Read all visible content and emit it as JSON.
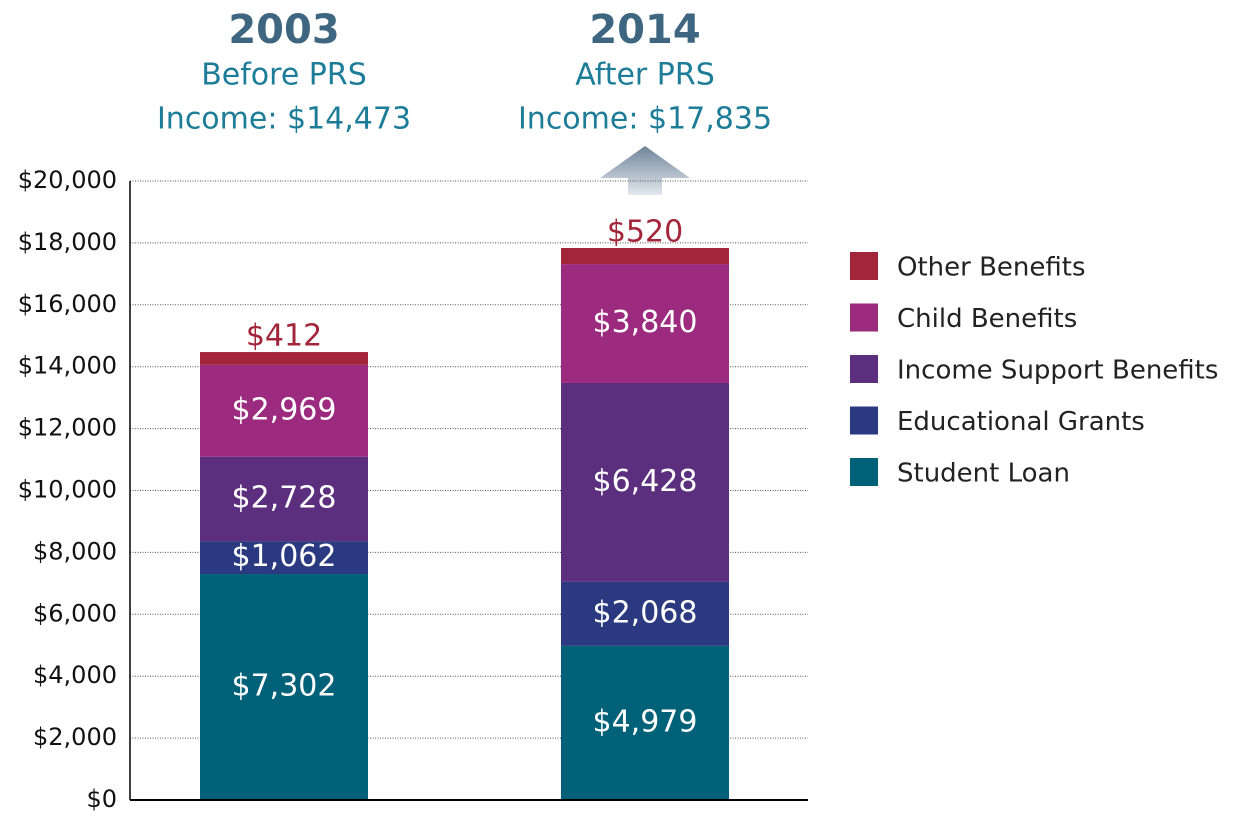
{
  "chart_data": {
    "type": "stacked_bar",
    "categories": [
      "2003",
      "2014"
    ],
    "subtitles": [
      "Before PRS",
      "After PRS"
    ],
    "total_labels": [
      "Income: $14,473",
      "Income: $17,835"
    ],
    "series": [
      {
        "name": "Student Loan",
        "color": "#006179",
        "values": [
          7302,
          4979
        ],
        "value_labels": [
          "$7,302",
          "$4,979"
        ]
      },
      {
        "name": "Educational Grants",
        "color": "#2b3a80",
        "values": [
          1062,
          2068
        ],
        "value_labels": [
          "$1,062",
          "$2,068"
        ]
      },
      {
        "name": "Income Support Benefits",
        "color": "#5b2e7e",
        "values": [
          2728,
          6428
        ],
        "value_labels": [
          "$2,728",
          "$6,428"
        ]
      },
      {
        "name": "Child Benefits",
        "color": "#9c2a7e",
        "values": [
          2969,
          3840
        ],
        "value_labels": [
          "$2,969",
          "$3,840"
        ]
      },
      {
        "name": "Other Benefits",
        "color": "#a3253a",
        "values": [
          412,
          520
        ],
        "value_labels": [
          "$412",
          "$520"
        ]
      }
    ],
    "ylim": [
      0,
      20000
    ],
    "yticks": [
      {
        "value": 0,
        "label": "$0"
      },
      {
        "value": 2000,
        "label": "$2,000"
      },
      {
        "value": 4000,
        "label": "$4,000"
      },
      {
        "value": 6000,
        "label": "$6,000"
      },
      {
        "value": 8000,
        "label": "$8,000"
      },
      {
        "value": 10000,
        "label": "$10,000"
      },
      {
        "value": 12000,
        "label": "$12,000"
      },
      {
        "value": 14000,
        "label": "$14,000"
      },
      {
        "value": 16000,
        "label": "$16,000"
      },
      {
        "value": 18000,
        "label": "$18,000"
      },
      {
        "value": 20000,
        "label": "$20,000"
      }
    ],
    "grid": true
  }
}
